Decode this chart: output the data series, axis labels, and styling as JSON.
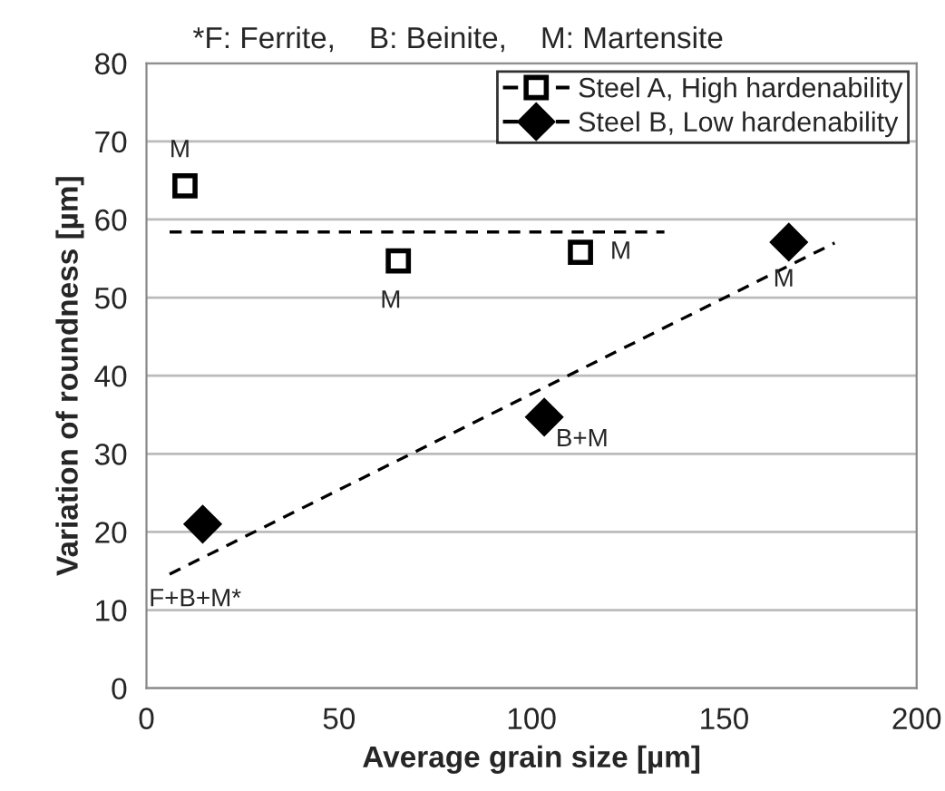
{
  "chart_data": {
    "type": "scatter",
    "title": "*F: Ferrite,    B: Beinite,    M: Martensite",
    "xlabel": "Average grain size [µm]",
    "ylabel": "Variation of roundness [µm]",
    "series": [
      {
        "name": "Steel A, High hardenability",
        "marker": "square",
        "color": "#ffffff",
        "x": [
          10,
          65.4,
          112.7
        ],
        "values": [
          64.3,
          54.7,
          55.8
        ]
      },
      {
        "name": "Steel B, Low hardenability",
        "marker": "diamond",
        "color": "#000000",
        "x": [
          14.6,
          103.3,
          166.8
        ],
        "values": [
          21.0,
          34.7,
          57.1
        ]
      },
      {
        "type": "line",
        "color": "#000000",
        "x": [
          6,
          134.5
        ],
        "values": [
          58.4,
          58.4
        ]
      },
      {
        "type": "line",
        "color": "#000000",
        "x": [
          6,
          178.7
        ],
        "values": [
          14.6,
          57.0
        ]
      }
    ],
    "line_style": "dashed",
    "annotations": [
      {
        "text": "M",
        "x": 10,
        "y": 64.3
      },
      {
        "text": "M",
        "x": 65.4,
        "y": 54.7
      },
      {
        "text": "M",
        "x": 112.7,
        "y": 55.8
      },
      {
        "text": "M",
        "x": 166.8,
        "y": 57.1
      },
      {
        "text": "B+M",
        "x": 103.3,
        "y": 34.7
      },
      {
        "text": "F+B+M*",
        "x": 14.6,
        "y": 21.0
      }
    ],
    "xlim": [
      0,
      200
    ],
    "xticks": [
      0,
      50,
      100,
      150,
      200
    ],
    "ylim": [
      0,
      80
    ],
    "yticks": [
      0,
      10,
      20,
      30,
      40,
      50,
      60,
      70,
      80
    ],
    "grid": "y",
    "legend": "top right"
  }
}
